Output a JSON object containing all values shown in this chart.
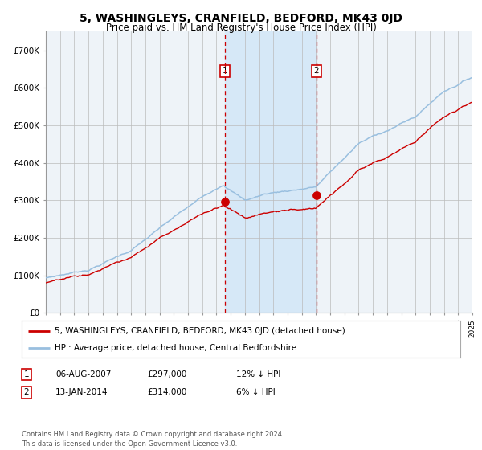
{
  "title": "5, WASHINGLEYS, CRANFIELD, BEDFORD, MK43 0JD",
  "subtitle": "Price paid vs. HM Land Registry's House Price Index (HPI)",
  "title_fontsize": 10,
  "subtitle_fontsize": 8.5,
  "bg_color": "#ffffff",
  "plot_bg_color": "#eef3f8",
  "grid_color": "#bbbbbb",
  "hpi_color": "#99bfdf",
  "price_color": "#cc0000",
  "highlight_color": "#d6e8f7",
  "year_start": 1995,
  "year_end": 2025,
  "ylim": [
    0,
    750000
  ],
  "yticks": [
    0,
    100000,
    200000,
    300000,
    400000,
    500000,
    600000,
    700000
  ],
  "ytick_labels": [
    "£0",
    "£100K",
    "£200K",
    "£300K",
    "£400K",
    "£500K",
    "£600K",
    "£700K"
  ],
  "sale1_date": 2007.6,
  "sale1_price": 297000,
  "sale1_label": "1",
  "sale2_date": 2014.04,
  "sale2_price": 314000,
  "sale2_label": "2",
  "legend_line1": "5, WASHINGLEYS, CRANFIELD, BEDFORD, MK43 0JD (detached house)",
  "legend_line2": "HPI: Average price, detached house, Central Bedfordshire",
  "table_row1": [
    "1",
    "06-AUG-2007",
    "£297,000",
    "12% ↓ HPI"
  ],
  "table_row2": [
    "2",
    "13-JAN-2014",
    "£314,000",
    "6% ↓ HPI"
  ],
  "footer": "Contains HM Land Registry data © Crown copyright and database right 2024.\nThis data is licensed under the Open Government Licence v3.0."
}
